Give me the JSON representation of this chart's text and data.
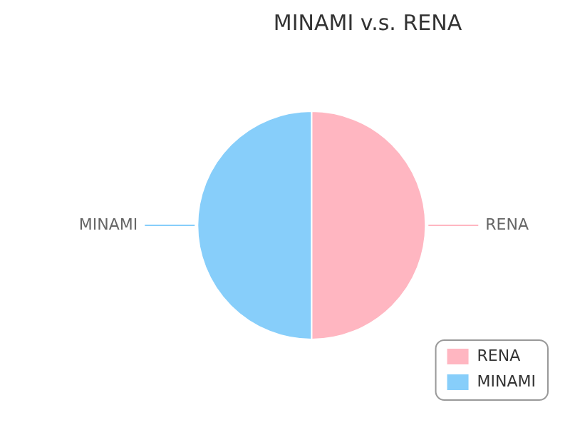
{
  "chart_data": {
    "type": "pie",
    "title": "MINAMI v.s. RENA",
    "categories": [
      "RENA",
      "MINAMI"
    ],
    "values": [
      50,
      50
    ],
    "colors": [
      "#ffb6c1",
      "#87cefa"
    ],
    "legend": "bottom right"
  }
}
